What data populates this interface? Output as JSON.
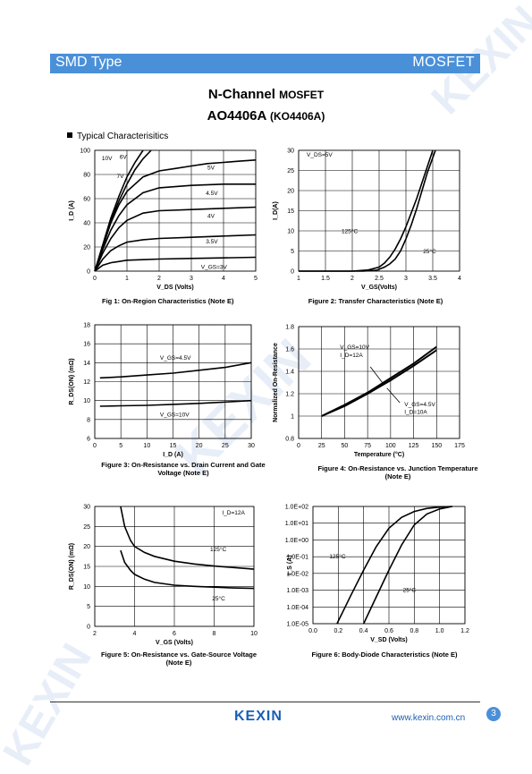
{
  "header": {
    "left": "SMD Type",
    "right": "MOSFET"
  },
  "title": {
    "line1_main": "N-Channel ",
    "line1_small": "MOSFET",
    "line2_main": "AO4406A ",
    "line2_small": "(KO4406A)"
  },
  "section": "Typical  Characterisitics",
  "watermark": "KEXIN",
  "footer": {
    "logo": "KEXIN",
    "url": "www.kexin.com.cn",
    "page": "3"
  },
  "chart_data": [
    {
      "id": "fig1",
      "type": "line",
      "caption": "Fig 1: On-Region Characteristics (Note E)",
      "xlabel": "V_DS (Volts)",
      "ylabel": "I_D (A)",
      "xlim": [
        0,
        5
      ],
      "ylim": [
        0,
        100
      ],
      "xticks": [
        "0",
        "1",
        "2",
        "3",
        "4",
        "5"
      ],
      "yticks": [
        "0",
        "20",
        "40",
        "60",
        "80",
        "100"
      ],
      "series": [
        {
          "name": "10V",
          "x": [
            0,
            0.25,
            0.5,
            0.75,
            1,
            1.25,
            1.5
          ],
          "y": [
            0,
            22,
            44,
            62,
            78,
            90,
            100
          ]
        },
        {
          "name": "7V",
          "x": [
            0,
            0.25,
            0.5,
            0.75,
            1,
            1.25,
            1.5,
            1.75
          ],
          "y": [
            0,
            21,
            42,
            58,
            72,
            84,
            93,
            100
          ]
        },
        {
          "name": "6V",
          "x": [
            0,
            0.25,
            0.5,
            0.75,
            1,
            1.5,
            2,
            2.5,
            3,
            3.5,
            4,
            4.5,
            5
          ],
          "y": [
            0,
            20,
            40,
            55,
            66,
            78,
            83,
            85,
            87,
            89,
            90,
            91,
            92
          ]
        },
        {
          "name": "5V",
          "x": [
            0,
            0.25,
            0.5,
            0.75,
            1,
            1.5,
            2,
            3,
            4,
            5
          ],
          "y": [
            0,
            18,
            34,
            46,
            55,
            65,
            69,
            71,
            72,
            72
          ]
        },
        {
          "name": "4.5V",
          "x": [
            0,
            0.25,
            0.5,
            0.75,
            1,
            1.5,
            2,
            3,
            4,
            5
          ],
          "y": [
            0,
            15,
            27,
            36,
            42,
            48,
            50,
            51,
            52,
            53
          ]
        },
        {
          "name": "4V",
          "x": [
            0,
            0.25,
            0.5,
            0.75,
            1,
            1.5,
            2,
            3,
            4,
            5
          ],
          "y": [
            0,
            10,
            17,
            21,
            24,
            26,
            27,
            28,
            29,
            30
          ]
        },
        {
          "name": "3.5V",
          "x": [
            0,
            0.25,
            0.5,
            1,
            1.5,
            2,
            3,
            4,
            5
          ],
          "y": [
            0,
            5,
            7,
            9,
            9.5,
            10,
            10.5,
            11,
            11.5
          ]
        }
      ],
      "labels": [
        {
          "text": "10V",
          "x": 0.22,
          "y": 92
        },
        {
          "text": "6V",
          "x": 0.77,
          "y": 93
        },
        {
          "text": "7V",
          "x": 0.68,
          "y": 77
        },
        {
          "text": "5V",
          "x": 3.5,
          "y": 84
        },
        {
          "text": "4.5V",
          "x": 3.45,
          "y": 63
        },
        {
          "text": "4V",
          "x": 3.5,
          "y": 44
        },
        {
          "text": "3.5V",
          "x": 3.45,
          "y": 23
        },
        {
          "text": "V_GS=3V",
          "x": 3.3,
          "y": 2
        }
      ]
    },
    {
      "id": "fig2",
      "type": "line",
      "caption": "Figure 2: Transfer Characteristics (Note E)",
      "xlabel": "V_GS(Volts)",
      "ylabel": "I_D(A)",
      "xlim": [
        1,
        4
      ],
      "ylim": [
        0,
        30
      ],
      "xticks": [
        "1",
        "1.5",
        "2",
        "2.5",
        "3",
        "3.5",
        "4"
      ],
      "yticks": [
        "0",
        "5",
        "10",
        "15",
        "20",
        "25",
        "30"
      ],
      "series": [
        {
          "name": "125°C",
          "x": [
            1,
            2.0,
            2.3,
            2.5,
            2.6,
            2.7,
            2.8,
            2.9,
            3.0,
            3.1,
            3.2,
            3.3,
            3.4,
            3.5
          ],
          "y": [
            0,
            0,
            0.3,
            1,
            2,
            3.5,
            5.5,
            8,
            11,
            14.5,
            18,
            22,
            26,
            30
          ]
        },
        {
          "name": "25°C",
          "x": [
            1,
            2.2,
            2.45,
            2.6,
            2.7,
            2.8,
            2.9,
            3.0,
            3.1,
            3.2,
            3.3,
            3.4,
            3.55
          ],
          "y": [
            0,
            0,
            0.2,
            1,
            1.8,
            3,
            5,
            8,
            11.5,
            15.5,
            20,
            24.5,
            30
          ]
        }
      ],
      "labels": [
        {
          "text": "V_DS=5V",
          "x": 1.15,
          "y": 28.5
        },
        {
          "text": "125°C",
          "x": 1.8,
          "y": 9.5
        },
        {
          "text": "25°C",
          "x": 3.32,
          "y": 4.5
        }
      ]
    },
    {
      "id": "fig3",
      "type": "line",
      "caption": "Figure 3: On-Resistance vs. Drain Current and Gate Voltage (Note E)",
      "xlabel": "I_D (A)",
      "ylabel": "R_DS(ON) (mΩ)",
      "xlim": [
        0,
        30
      ],
      "ylim": [
        6,
        18
      ],
      "xticks": [
        "0",
        "5",
        "10",
        "15",
        "20",
        "25",
        "30"
      ],
      "yticks": [
        "6",
        "8",
        "10",
        "12",
        "14",
        "16",
        "18"
      ],
      "series": [
        {
          "name": "V_GS=4.5V",
          "x": [
            1,
            5,
            10,
            15,
            20,
            25,
            30
          ],
          "y": [
            12.4,
            12.5,
            12.7,
            12.9,
            13.2,
            13.5,
            14.0
          ]
        },
        {
          "name": "V_GS=10V",
          "x": [
            1,
            5,
            10,
            15,
            20,
            25,
            30
          ],
          "y": [
            9.4,
            9.45,
            9.5,
            9.6,
            9.7,
            9.85,
            10.0
          ]
        }
      ],
      "labels": [
        {
          "text": "V_GS=4.5V",
          "x": 12.5,
          "y": 14.3
        },
        {
          "text": "V_GS=10V",
          "x": 12.5,
          "y": 8.3
        }
      ]
    },
    {
      "id": "fig4",
      "type": "line",
      "caption": "Figure 4: On-Resistance vs. Junction Temperature (Note E)",
      "xlabel": "Temperature (°C)",
      "ylabel": "Normalized On-Resistance",
      "xlim": [
        0,
        175
      ],
      "ylim": [
        0.8,
        1.8
      ],
      "xticks": [
        "0",
        "25",
        "50",
        "75",
        "100",
        "125",
        "150",
        "175"
      ],
      "yticks": [
        "0.8",
        "1",
        "1.2",
        "1.4",
        "1.6",
        "1.8"
      ],
      "series": [
        {
          "name": "V_GS=10V I_D=12A",
          "x": [
            25,
            50,
            75,
            100,
            125,
            150
          ],
          "y": [
            1.0,
            1.1,
            1.21,
            1.34,
            1.47,
            1.62
          ]
        },
        {
          "name": "V_GS=4.5V I_D=10A",
          "x": [
            25,
            50,
            75,
            100,
            125,
            150
          ],
          "y": [
            1.0,
            1.09,
            1.2,
            1.32,
            1.45,
            1.59
          ]
        }
      ],
      "labels": [
        {
          "text": "V_GS=10V",
          "x": 45,
          "y": 1.6
        },
        {
          "text": "I_D=12A",
          "x": 45,
          "y": 1.53
        },
        {
          "text": "V_GS=4.5V",
          "x": 115,
          "y": 1.09
        },
        {
          "text": "I_D=10A",
          "x": 115,
          "y": 1.02
        }
      ]
    },
    {
      "id": "fig5",
      "type": "line",
      "caption": "Figure 5: On-Resistance vs. Gate-Source Voltage (Note E)",
      "xlabel": "V_GS (Volts)",
      "ylabel": "R_DS(ON) (mΩ)",
      "xlim": [
        2,
        10
      ],
      "ylim": [
        0,
        30
      ],
      "xticks": [
        "2",
        "4",
        "6",
        "8",
        "10"
      ],
      "yticks": [
        "0",
        "5",
        "10",
        "15",
        "20",
        "25",
        "30"
      ],
      "series": [
        {
          "name": "125°C",
          "x": [
            3.3,
            3.5,
            3.8,
            4,
            4.5,
            5,
            6,
            7,
            8,
            9,
            10
          ],
          "y": [
            30,
            25,
            21.5,
            20,
            18.5,
            17.5,
            16.3,
            15.6,
            15.1,
            14.7,
            14.3
          ]
        },
        {
          "name": "25°C",
          "x": [
            3.3,
            3.5,
            3.8,
            4,
            4.5,
            5,
            6,
            7,
            8,
            9,
            10
          ],
          "y": [
            19,
            16,
            14,
            13,
            11.8,
            11,
            10.3,
            10,
            9.8,
            9.6,
            9.5
          ]
        }
      ],
      "labels": [
        {
          "text": "I_D=12A",
          "x": 8.4,
          "y": 28
        },
        {
          "text": "125°C",
          "x": 7.8,
          "y": 18.8
        },
        {
          "text": "25°C",
          "x": 7.9,
          "y": 6.5
        }
      ]
    },
    {
      "id": "fig6",
      "type": "line",
      "caption": "Figure 6: Body-Diode Characteristics (Note E)",
      "xlabel": "V_SD (Volts)",
      "ylabel": "I_S (A)",
      "xlim": [
        0,
        1.2
      ],
      "ylim": [
        -5,
        2
      ],
      "yscale": "log",
      "xticks": [
        "0.0",
        "0.2",
        "0.4",
        "0.6",
        "0.8",
        "1.0",
        "1.2"
      ],
      "yticks": [
        "1.0E-05",
        "1.0E-04",
        "1.0E-03",
        "1.0E-02",
        "1.0E-01",
        "1.0E+00",
        "1.0E+01",
        "1.0E+02"
      ],
      "series": [
        {
          "name": "125°C",
          "x": [
            0.19,
            0.3,
            0.4,
            0.5,
            0.6,
            0.7,
            0.8,
            0.9,
            1.0,
            1.1
          ],
          "y": [
            -5,
            -3.3,
            -1.8,
            -0.4,
            0.7,
            1.35,
            1.7,
            1.88,
            1.96,
            2.0
          ]
        },
        {
          "name": "25°C",
          "x": [
            0.4,
            0.5,
            0.6,
            0.7,
            0.8,
            0.9,
            1.0,
            1.1
          ],
          "y": [
            -5,
            -3.4,
            -1.8,
            -0.3,
            0.9,
            1.55,
            1.85,
            2.0
          ]
        }
      ],
      "labels": [
        {
          "text": "125°C",
          "x": 0.13,
          "y": -1.1
        },
        {
          "text": "25°C",
          "x": 0.71,
          "y": -3.1
        }
      ]
    }
  ]
}
